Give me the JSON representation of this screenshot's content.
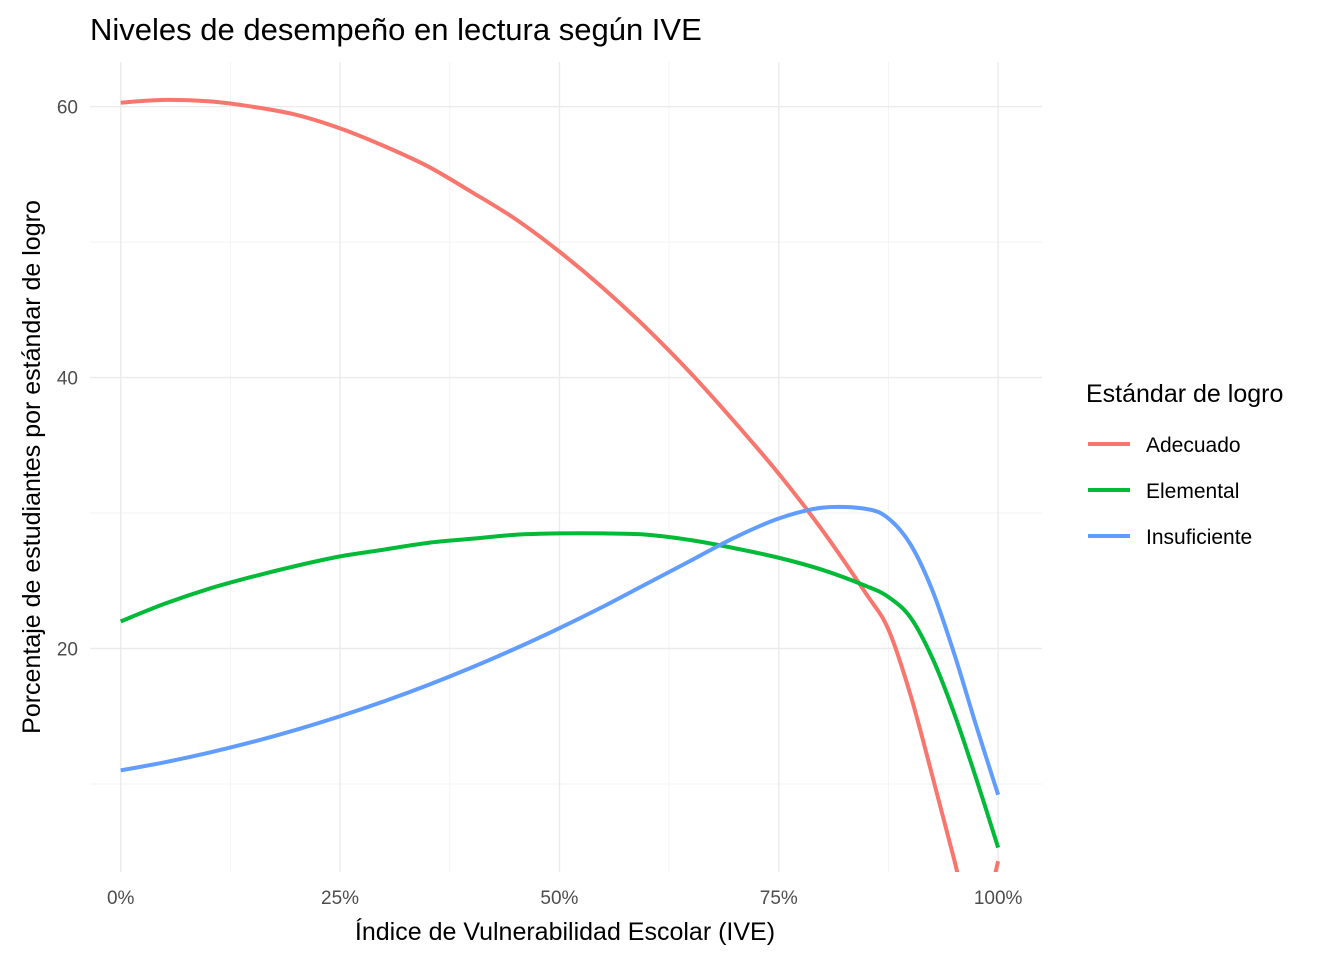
{
  "chart_data": {
    "type": "line",
    "title": "Niveles de desempeño en lectura según IVE",
    "xlabel": "Índice de Vulnerabilidad Escolar (IVE)",
    "ylabel": "Porcentaje de estudiantes por estándar de logro",
    "xlim": [
      -0.035,
      1.05
    ],
    "ylim": [
      3.5,
      63.3
    ],
    "x_ticks": [
      0,
      0.25,
      0.5,
      0.75,
      1
    ],
    "x_tick_labels": [
      "0%",
      "25%",
      "50%",
      "75%",
      "100%"
    ],
    "y_ticks": [
      20,
      40,
      60
    ],
    "y_tick_labels": [
      "20",
      "40",
      "60"
    ],
    "grid": true,
    "legend": {
      "title": "Estándar de logro",
      "position": "right"
    },
    "series": [
      {
        "name": "Adecuado",
        "color": "#F8766D",
        "x": [
          0,
          0.05,
          0.1,
          0.15,
          0.2,
          0.25,
          0.3,
          0.35,
          0.4,
          0.45,
          0.5,
          0.55,
          0.6,
          0.65,
          0.7,
          0.75,
          0.8,
          0.85,
          0.875,
          0.9,
          0.925,
          0.95,
          0.975,
          1.0
        ],
        "y": [
          60.3,
          60.5,
          60.4,
          60.0,
          59.4,
          58.4,
          57.1,
          55.6,
          53.7,
          51.7,
          49.3,
          46.6,
          43.6,
          40.3,
          36.7,
          32.9,
          28.7,
          24.0,
          21.4,
          16.6,
          10.6,
          4.4,
          -1.5,
          4.3
        ]
      },
      {
        "name": "Elemental",
        "color": "#00BA38",
        "x": [
          0,
          0.05,
          0.1,
          0.15,
          0.2,
          0.25,
          0.3,
          0.35,
          0.4,
          0.45,
          0.5,
          0.55,
          0.6,
          0.65,
          0.7,
          0.75,
          0.8,
          0.85,
          0.875,
          0.9,
          0.925,
          0.95,
          0.975,
          1.0
        ],
        "y": [
          22.0,
          23.3,
          24.4,
          25.3,
          26.1,
          26.8,
          27.3,
          27.8,
          28.1,
          28.4,
          28.5,
          28.5,
          28.4,
          28.0,
          27.4,
          26.7,
          25.8,
          24.6,
          23.8,
          22.3,
          19.3,
          15.2,
          10.4,
          5.3
        ]
      },
      {
        "name": "Insuficiente",
        "color": "#619CFF",
        "x": [
          0,
          0.05,
          0.1,
          0.15,
          0.2,
          0.25,
          0.3,
          0.35,
          0.4,
          0.45,
          0.5,
          0.55,
          0.6,
          0.65,
          0.7,
          0.75,
          0.8,
          0.85,
          0.875,
          0.9,
          0.925,
          0.95,
          0.975,
          1.0
        ],
        "y": [
          11.0,
          11.6,
          12.3,
          13.1,
          14.0,
          15.0,
          16.1,
          17.3,
          18.6,
          20.0,
          21.5,
          23.1,
          24.8,
          26.5,
          28.2,
          29.6,
          30.4,
          30.3,
          29.6,
          27.7,
          24.3,
          19.6,
          14.3,
          9.2
        ]
      }
    ]
  }
}
